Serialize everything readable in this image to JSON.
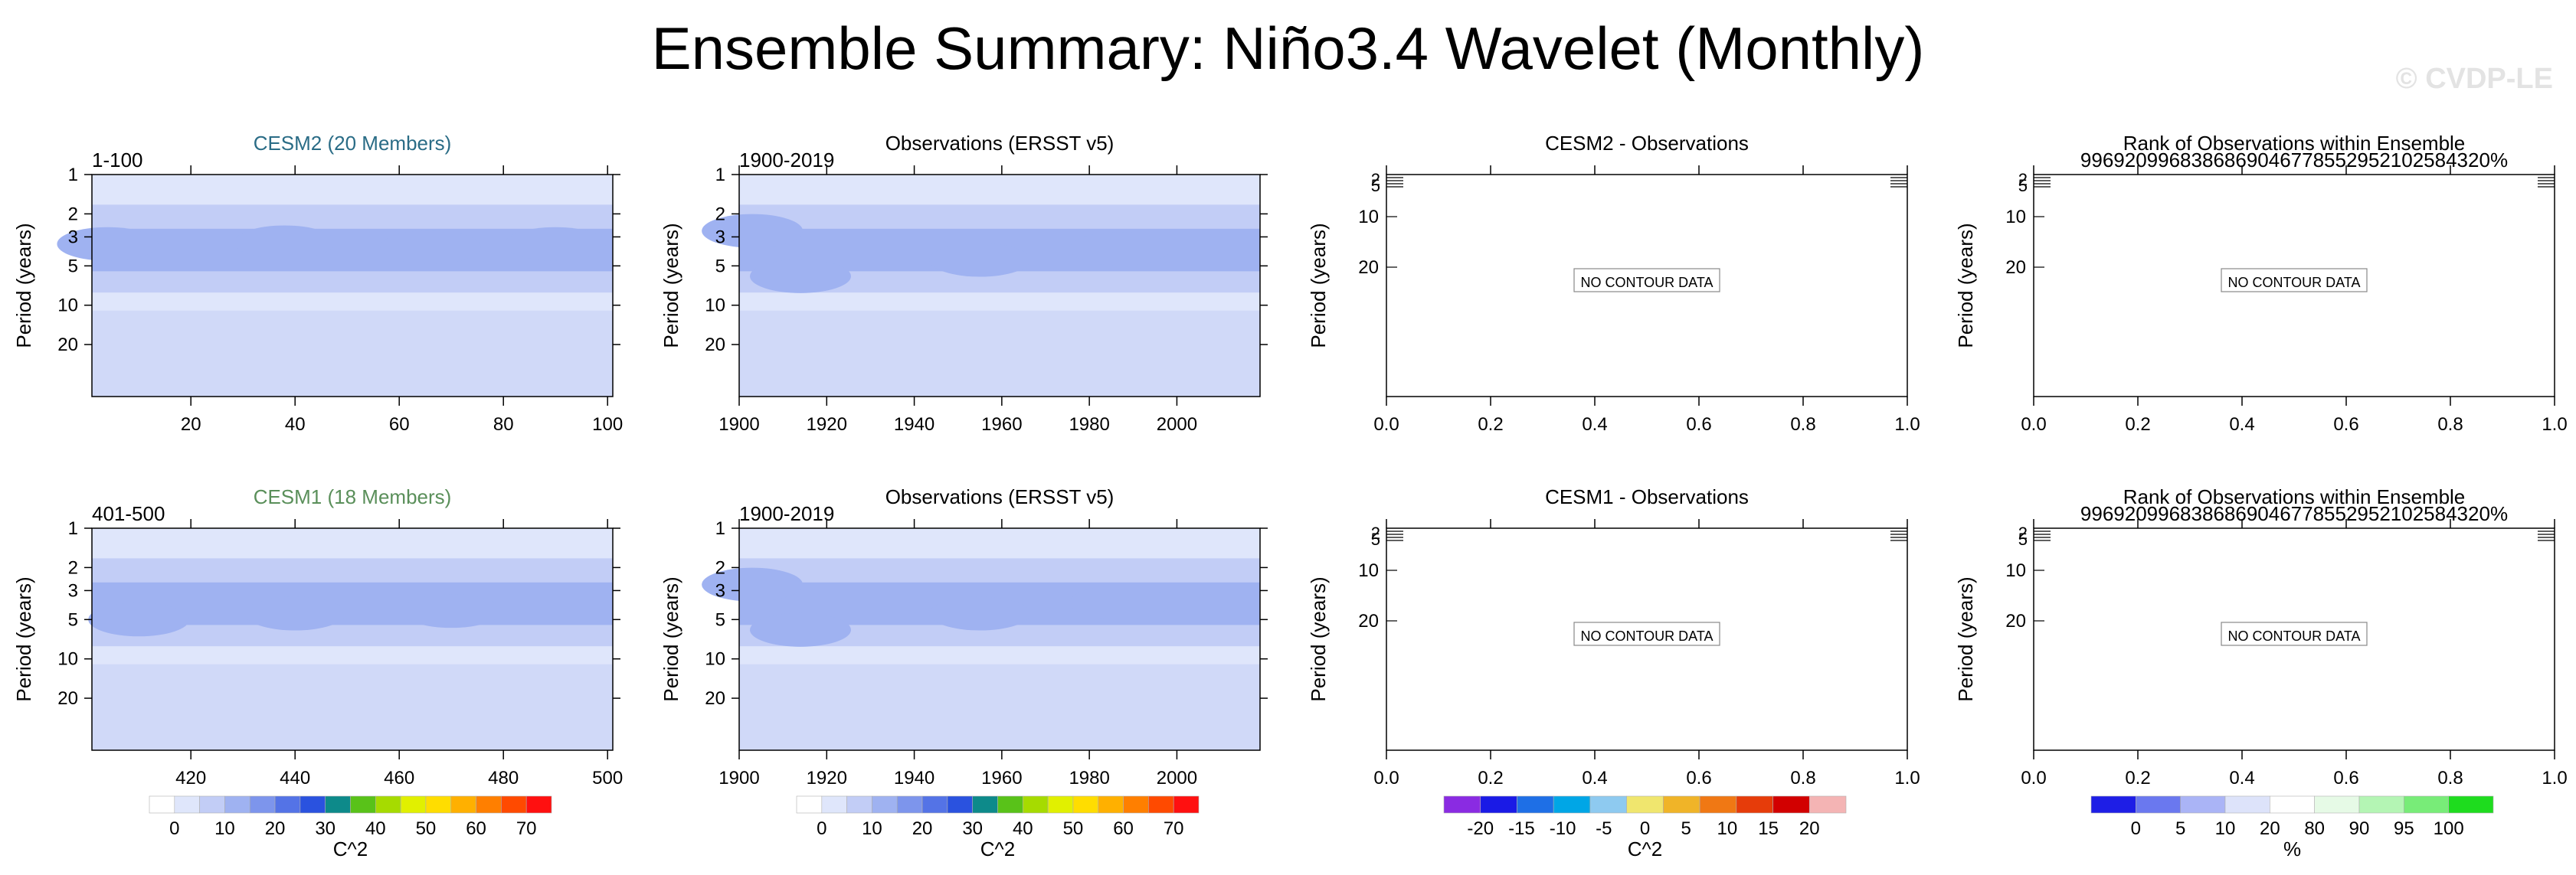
{
  "title": "Ensemble Summary: Niño3.4 Wavelet (Monthly)",
  "watermark": "© CVDP-LE",
  "chart_data": [
    {
      "type": "heatmap",
      "title": "CESM2 (20 Members)",
      "title_color": "#2a6c86",
      "left_label": "1-100",
      "ylabel": "Period (years)",
      "xlabel": "",
      "xlim": [
        1,
        101
      ],
      "ylim": [
        1,
        50
      ],
      "yscale": "log",
      "xticks": [
        20,
        40,
        60,
        80,
        100
      ],
      "yticks": [
        1,
        2,
        3,
        5,
        10,
        20
      ],
      "band_centers": [
        {
          "x": 4,
          "y": 3.4,
          "level": 6
        },
        {
          "x": 38,
          "y": 3.3,
          "level": 5
        },
        {
          "x": 66,
          "y": 3.6,
          "level": 5
        },
        {
          "x": 90,
          "y": 3.4,
          "level": 6
        }
      ],
      "no_data_text": ""
    },
    {
      "type": "heatmap",
      "title": "Observations (ERSST v5)",
      "title_color": "#000000",
      "left_label": "1900-2019",
      "ylabel": "Period (years)",
      "xlabel": "",
      "xlim": [
        1900,
        2019
      ],
      "ylim": [
        1,
        50
      ],
      "yscale": "log",
      "xticks": [
        1900,
        1920,
        1940,
        1960,
        1980,
        2000
      ],
      "yticks": [
        1,
        2,
        3,
        5,
        10,
        20
      ],
      "band_centers": [
        {
          "x": 1903,
          "y": 2.7,
          "level": 4
        },
        {
          "x": 1914,
          "y": 6,
          "level": 3
        },
        {
          "x": 1955,
          "y": 4.5,
          "level": 3
        },
        {
          "x": 1987,
          "y": 3.7,
          "level": 5
        }
      ],
      "no_data_text": ""
    },
    {
      "type": "heatmap",
      "title": "CESM2 - Observations",
      "title_color": "#000000",
      "left_label": "",
      "ylabel": "Period (years)",
      "xlabel": "",
      "xlim": [
        0,
        1
      ],
      "yticks": [
        10,
        20
      ],
      "xticks": [
        0.0,
        0.2,
        0.4,
        0.6,
        0.8,
        1.0
      ],
      "no_data_text": "NO CONTOUR DATA"
    },
    {
      "type": "heatmap",
      "title": "Rank of Observations within Ensemble",
      "subtitle_digits": "9969209968386869046778552952102584320%",
      "title_color": "#000000",
      "left_label": "",
      "ylabel": "Period (years)",
      "xlabel": "",
      "xlim": [
        0,
        1
      ],
      "yticks": [
        10,
        20
      ],
      "xticks": [
        0.0,
        0.2,
        0.4,
        0.6,
        0.8,
        1.0
      ],
      "no_data_text": "NO CONTOUR DATA"
    },
    {
      "type": "heatmap",
      "title": "CESM1 (18 Members)",
      "title_color": "#5a8f5a",
      "left_label": "401-500",
      "ylabel": "Period (years)",
      "xlabel": "",
      "xlim": [
        401,
        501
      ],
      "ylim": [
        1,
        50
      ],
      "yscale": "log",
      "xticks": [
        420,
        440,
        460,
        480,
        500
      ],
      "yticks": [
        1,
        2,
        3,
        5,
        10,
        20
      ],
      "band_centers": [
        {
          "x": 410,
          "y": 5,
          "level": 5
        },
        {
          "x": 440,
          "y": 4.5,
          "level": 3
        },
        {
          "x": 470,
          "y": 4.3,
          "level": 3
        }
      ],
      "no_data_text": ""
    },
    {
      "type": "heatmap",
      "title": "Observations (ERSST v5)",
      "title_color": "#000000",
      "left_label": "1900-2019",
      "ylabel": "Period (years)",
      "xlabel": "",
      "xlim": [
        1900,
        2019
      ],
      "ylim": [
        1,
        50
      ],
      "yscale": "log",
      "xticks": [
        1900,
        1920,
        1940,
        1960,
        1980,
        2000
      ],
      "yticks": [
        1,
        2,
        3,
        5,
        10,
        20
      ],
      "band_centers": [
        {
          "x": 1903,
          "y": 2.7,
          "level": 4
        },
        {
          "x": 1914,
          "y": 6,
          "level": 3
        },
        {
          "x": 1955,
          "y": 4.5,
          "level": 3
        },
        {
          "x": 1987,
          "y": 3.7,
          "level": 5
        }
      ],
      "no_data_text": ""
    },
    {
      "type": "heatmap",
      "title": "CESM1 - Observations",
      "title_color": "#000000",
      "left_label": "",
      "ylabel": "Period (years)",
      "xlabel": "",
      "xlim": [
        0,
        1
      ],
      "yticks": [
        10,
        20
      ],
      "xticks": [
        0.0,
        0.2,
        0.4,
        0.6,
        0.8,
        1.0
      ],
      "no_data_text": "NO CONTOUR DATA"
    },
    {
      "type": "heatmap",
      "title": "Rank of Observations within Ensemble",
      "subtitle_digits": "9969209968386869046778552952102584320%",
      "title_color": "#000000",
      "left_label": "",
      "ylabel": "Period (years)",
      "xlabel": "",
      "xlim": [
        0,
        1
      ],
      "yticks": [
        10,
        20
      ],
      "xticks": [
        0.0,
        0.2,
        0.4,
        0.6,
        0.8,
        1.0
      ],
      "no_data_text": "NO CONTOUR DATA"
    }
  ],
  "colorbars": [
    {
      "name": "power",
      "label": "C^2",
      "labels": [
        "0",
        "10",
        "20",
        "30",
        "40",
        "50",
        "60",
        "70"
      ],
      "colors": [
        "#ffffff",
        "#dfe6fb",
        "#c2cdf6",
        "#9fb2f1",
        "#7d95ec",
        "#5473e6",
        "#2a52df",
        "#0d8a8a",
        "#59c219",
        "#a6db00",
        "#e1f000",
        "#ffdd00",
        "#ffb000",
        "#ff7f00",
        "#ff4a00",
        "#ff1010"
      ]
    },
    {
      "name": "difference",
      "label": "C^2",
      "labels": [
        "-20",
        "-15",
        "-10",
        "-5",
        "0",
        "5",
        "10",
        "15",
        "20"
      ],
      "colors": [
        "#8a2be2",
        "#1a1ae6",
        "#1e6fe6",
        "#00a6e6",
        "#8ecaf0",
        "#f0e66e",
        "#f0b428",
        "#f07814",
        "#e63c0a",
        "#d20000",
        "#f4b4b4"
      ]
    },
    {
      "name": "rank",
      "label": "%",
      "labels": [
        "0",
        "5",
        "10",
        "20",
        "80",
        "90",
        "95",
        "100"
      ],
      "colors": [
        "#1e1ee6",
        "#6a78ef",
        "#aab4f6",
        "#dde3fa",
        "#ffffff",
        "#e6fae6",
        "#b4f5b4",
        "#78ec78",
        "#1edc1e"
      ]
    }
  ]
}
